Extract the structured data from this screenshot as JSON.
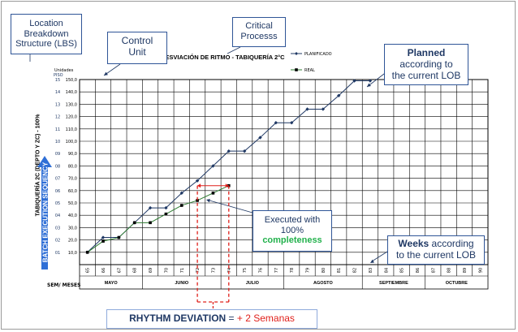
{
  "callouts": {
    "lbs": [
      "Location",
      "Breakdown",
      "Structure (LBS)"
    ],
    "control_unit": [
      "Control",
      "Unit"
    ],
    "critical": [
      "Critical",
      "Processs"
    ],
    "planned_bold": "Planned",
    "planned_rest": [
      "according to",
      "the current LOB"
    ],
    "executed_lines": [
      "Executed with",
      "100%"
    ],
    "executed_bold": "completeness",
    "weeks_bold": "Weeks",
    "weeks_rest1": " according",
    "weeks_rest2": "to the current LOB",
    "rhythm_label": "RHYTHM DEVIATION",
    "rhythm_eq": " = ",
    "rhythm_value": "+ 2 Semanas"
  },
  "labels": {
    "unidades": "Unidades",
    "piso": "PISO",
    "sem_meses": "SEM/ MESES",
    "tabiqueria": "TABIQUERÍA 2C (DEPTO Y ZC) - 100%",
    "batch": "BATCH EXECUTION SEQUENCY"
  },
  "chart_data": {
    "type": "line",
    "title": "DESVIACIÓN DE RITMO  -  TABIQUERÍA 2°C",
    "weeks": [
      "65",
      "66",
      "67",
      "68",
      "69",
      "70",
      "71",
      "72",
      "73",
      "74",
      "75",
      "76",
      "77",
      "78",
      "79",
      "80",
      "81",
      "82",
      "83",
      "84",
      "85",
      "86",
      "87",
      "88",
      "89",
      "90"
    ],
    "months": [
      "MAYO",
      "JUNIO",
      "JULIO",
      "AGOSTO",
      "SEPTIEMBRE",
      "OCTUBRE"
    ],
    "month_spans": [
      [
        0,
        4
      ],
      [
        4,
        9
      ],
      [
        9,
        13
      ],
      [
        13,
        18
      ],
      [
        18,
        22
      ],
      [
        22,
        26
      ]
    ],
    "yticks": [
      "10,0",
      "20,0",
      "30,0",
      "40,0",
      "50,0",
      "60,0",
      "70,0",
      "80,0",
      "90,0",
      "100,0",
      "110,0",
      "120,0",
      "130,0",
      "140,0",
      "150,0"
    ],
    "floors": [
      "01",
      "02",
      "03",
      "04",
      "05",
      "06",
      "07",
      "08",
      "09",
      "10",
      "11",
      "12",
      "13",
      "14",
      "15"
    ],
    "ylim": [
      0,
      150
    ],
    "series": [
      {
        "name": "PLANIFICADO",
        "color": "#1f3864",
        "marker": "diamond",
        "x": [
          65,
          66,
          67,
          68,
          69,
          70,
          71,
          72,
          73,
          74,
          75,
          76,
          77,
          78,
          79,
          80,
          81,
          82,
          83
        ],
        "y": [
          10,
          22,
          22,
          34,
          46,
          46,
          58,
          68,
          80,
          92,
          92,
          103,
          115,
          115,
          126,
          126,
          137,
          149,
          149
        ]
      },
      {
        "name": "REAL",
        "color": "#2e7d32",
        "marker": "square",
        "x": [
          65,
          66,
          67,
          68,
          69,
          70,
          71,
          72,
          73,
          74
        ],
        "y": [
          10,
          19,
          22,
          34,
          34,
          41,
          48,
          52,
          58,
          64
        ]
      }
    ]
  }
}
